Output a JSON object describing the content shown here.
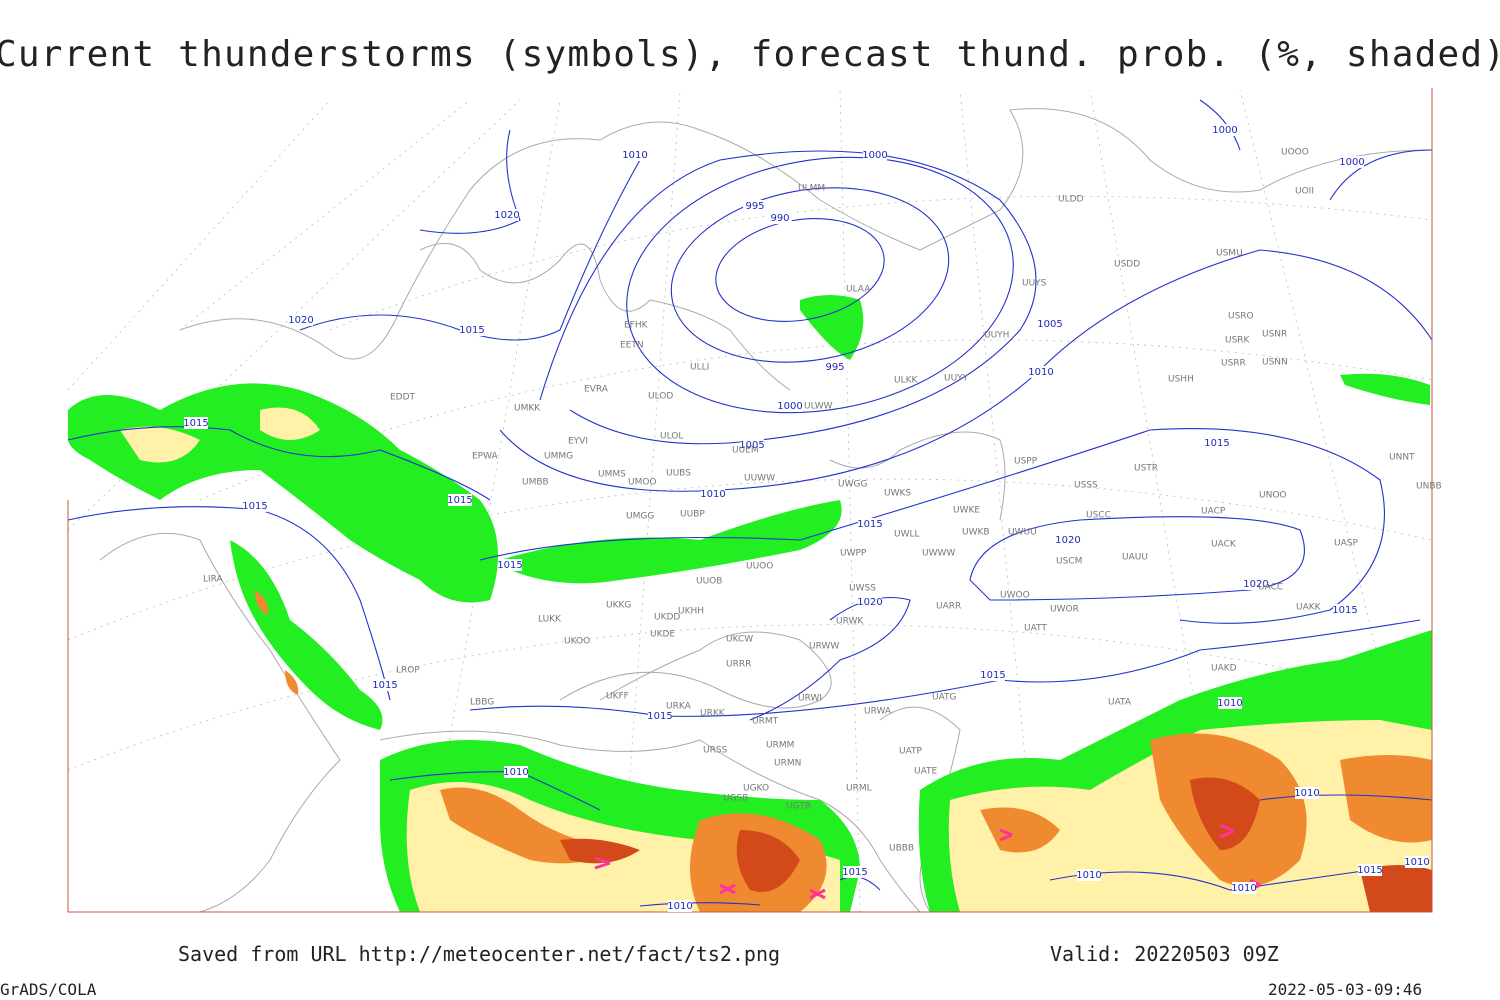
{
  "title": "Current thunderstorms (symbols), forecast thund. prob. (%, shaded)",
  "footer": {
    "saved": "Saved from URL http://meteocenter.net/fact/ts2.png",
    "valid": "Valid: 20220503 09Z",
    "software": "GrADS/COLA",
    "timestamp": "2022-05-03-09:46"
  },
  "isobars": [
    "1010",
    "1020",
    "1020",
    "1015",
    "1000",
    "995",
    "990",
    "1000",
    "1000",
    "1005",
    "1010",
    "995",
    "1000",
    "1005",
    "1010",
    "1015",
    "1015",
    "1015",
    "1015",
    "1015",
    "1015",
    "1020",
    "1020",
    "1020",
    "1015",
    "1015",
    "1015",
    "1015",
    "1010",
    "1010",
    "1010",
    "1010",
    "1010",
    "1015",
    "1010",
    "1010",
    "1015"
  ],
  "stations": [
    "EFHK",
    "EETN",
    "ULLI",
    "EVRA",
    "ULOD",
    "EDDT",
    "UMKK",
    "ULOL",
    "EYVI",
    "UMMG",
    "EPWA",
    "UMBB",
    "UMMS",
    "UMOO",
    "UUBS",
    "UUWW",
    "UUEM",
    "ULMM",
    "ULAA",
    "ULWW",
    "UUYY",
    "ULKK",
    "UUYH",
    "UUYS",
    "ULDD",
    "USDD",
    "USMU",
    "USRO",
    "USRK",
    "USNR",
    "USRR",
    "USNN",
    "USHH",
    "UOOO",
    "UOII",
    "USPP",
    "USSS",
    "USTR",
    "UNOO",
    "USCC",
    "UACP",
    "UWKE",
    "UWKS",
    "UWGG",
    "UWLL",
    "UWKB",
    "UWUU",
    "UWWW",
    "UWPP",
    "USCM",
    "UAUU",
    "UACK",
    "UASP",
    "UNNT",
    "UNBB",
    "UWOO",
    "UWOR",
    "UATT",
    "UARR",
    "UWSS",
    "URWW",
    "URWK",
    "UAKK",
    "UACC",
    "UAKD",
    "UATG",
    "UATA",
    "UATE",
    "UATP",
    "URWA",
    "URWI",
    "URRR",
    "UKCW",
    "UKDE",
    "UKDD",
    "UKHH",
    "UKKG",
    "UUOB",
    "UUOO",
    "UUBP",
    "UMGG",
    "LUKK",
    "UKOO",
    "UKFF",
    "URKA",
    "URKK",
    "URMT",
    "URMM",
    "URMN",
    "URSS",
    "URML",
    "UGSB",
    "UGKO",
    "UGTB",
    "UBBB",
    "LIRA",
    "LBBG",
    "LROP"
  ]
}
